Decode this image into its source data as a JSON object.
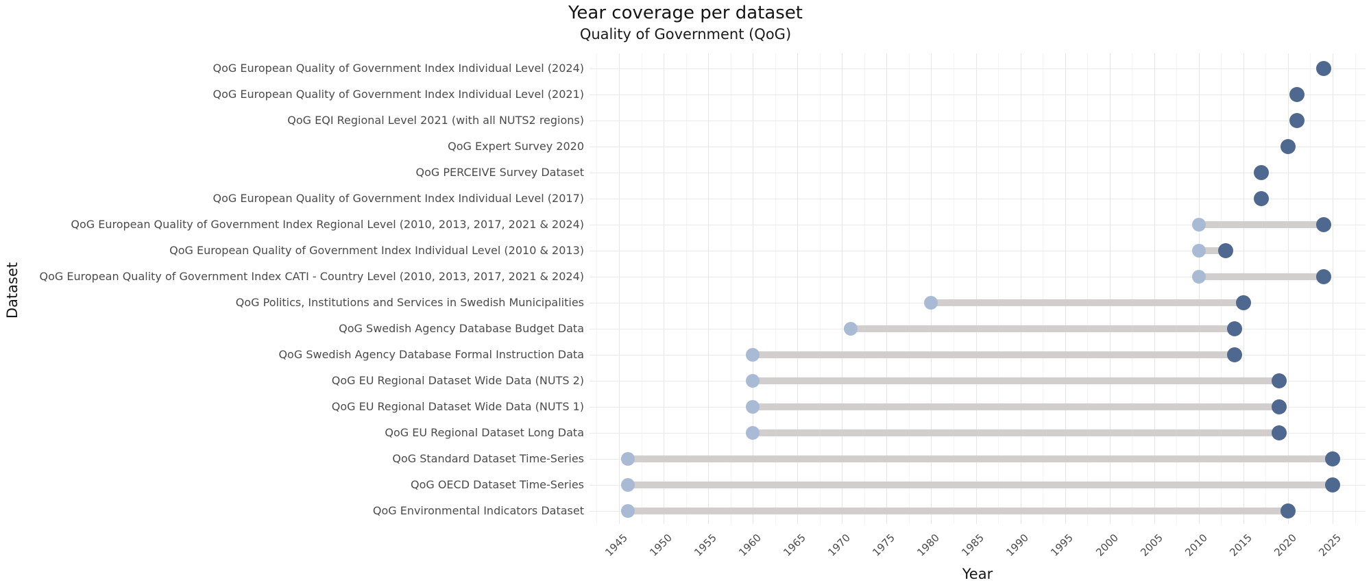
{
  "title": "Year coverage per dataset",
  "subtitle": "Quality of Government (QoG)",
  "chart_data": {
    "type": "dumbbell",
    "title": "Year coverage per dataset",
    "subtitle": "Quality of Government (QoG)",
    "xlabel": "Year",
    "ylabel": "Dataset",
    "x_ticks": [
      1945,
      1950,
      1955,
      1960,
      1965,
      1970,
      1975,
      1980,
      1985,
      1990,
      1995,
      2000,
      2005,
      2010,
      2015,
      2020,
      2025
    ],
    "x_minor_ticks_step": 2.5,
    "x_range": [
      1941.7,
      2028.5
    ],
    "grid": "vertical major+minor, horizontal per-row",
    "legend": "none",
    "colors": {
      "range_bar": "#d1cecd",
      "start_dot": "#a9bbd4",
      "end_dot": "#4e6890",
      "grid_major": "#e6e6e6",
      "grid_minor": "#f4f4f4",
      "row_line": "#eaeaea",
      "tick_text": "#4b4b4b",
      "title_text": "#151515"
    },
    "rows": [
      {
        "label": "QoG European Quality of Government Index Individual Level (2024)",
        "start": 2024,
        "end": 2024
      },
      {
        "label": "QoG European Quality of Government Index Individual Level (2021)",
        "start": 2021,
        "end": 2021
      },
      {
        "label": "QoG EQI Regional Level 2021 (with all NUTS2 regions)",
        "start": 2021,
        "end": 2021
      },
      {
        "label": "QoG Expert Survey 2020",
        "start": 2020,
        "end": 2020
      },
      {
        "label": "QoG PERCEIVE Survey Dataset",
        "start": 2017,
        "end": 2017
      },
      {
        "label": "QoG European Quality of Government Index Individual Level (2017)",
        "start": 2017,
        "end": 2017
      },
      {
        "label": "QoG European Quality of Government Index Regional Level (2010, 2013, 2017, 2021 & 2024)",
        "start": 2010,
        "end": 2024
      },
      {
        "label": "QoG European Quality of Government Index Individual Level (2010 & 2013)",
        "start": 2010,
        "end": 2013
      },
      {
        "label": "QoG European Quality of Government Index CATI - Country Level (2010, 2013, 2017, 2021 & 2024)",
        "start": 2010,
        "end": 2024
      },
      {
        "label": "QoG Politics, Institutions and Services in Swedish Municipalities",
        "start": 1980,
        "end": 2015
      },
      {
        "label": "QoG Swedish Agency Database Budget Data",
        "start": 1971,
        "end": 2014
      },
      {
        "label": "QoG Swedish Agency Database Formal Instruction Data",
        "start": 1960,
        "end": 2014
      },
      {
        "label": "QoG EU Regional Dataset Wide Data (NUTS 2)",
        "start": 1960,
        "end": 2019
      },
      {
        "label": "QoG EU Regional Dataset Wide Data (NUTS 1)",
        "start": 1960,
        "end": 2019
      },
      {
        "label": "QoG EU Regional Dataset Long Data",
        "start": 1960,
        "end": 2019
      },
      {
        "label": "QoG Standard Dataset Time-Series",
        "start": 1946,
        "end": 2025
      },
      {
        "label": "QoG OECD Dataset Time-Series",
        "start": 1946,
        "end": 2025
      },
      {
        "label": "QoG Environmental Indicators Dataset",
        "start": 1946,
        "end": 2020
      }
    ]
  }
}
